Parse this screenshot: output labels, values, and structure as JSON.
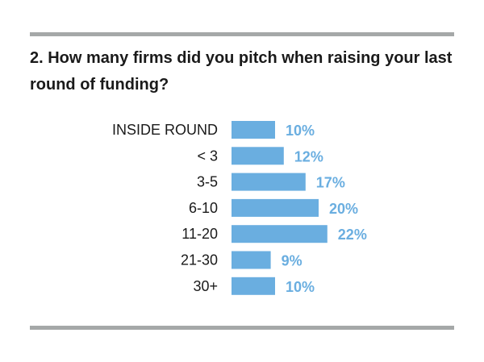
{
  "chart_data": {
    "type": "bar",
    "orientation": "horizontal",
    "title": "2. How many firms did you pitch when raising your last round of funding?",
    "categories": [
      "INSIDE ROUND",
      "< 3",
      "3-5",
      "6-10",
      "11-20",
      "21-30",
      "30+"
    ],
    "values": [
      10,
      12,
      17,
      20,
      22,
      9,
      10
    ],
    "value_labels": [
      "10%",
      "12%",
      "17%",
      "20%",
      "22%",
      "9%",
      "10%"
    ],
    "unit": "%",
    "xlabel": "",
    "ylabel": "",
    "grid": false,
    "bar_color": "#6aaee0"
  }
}
